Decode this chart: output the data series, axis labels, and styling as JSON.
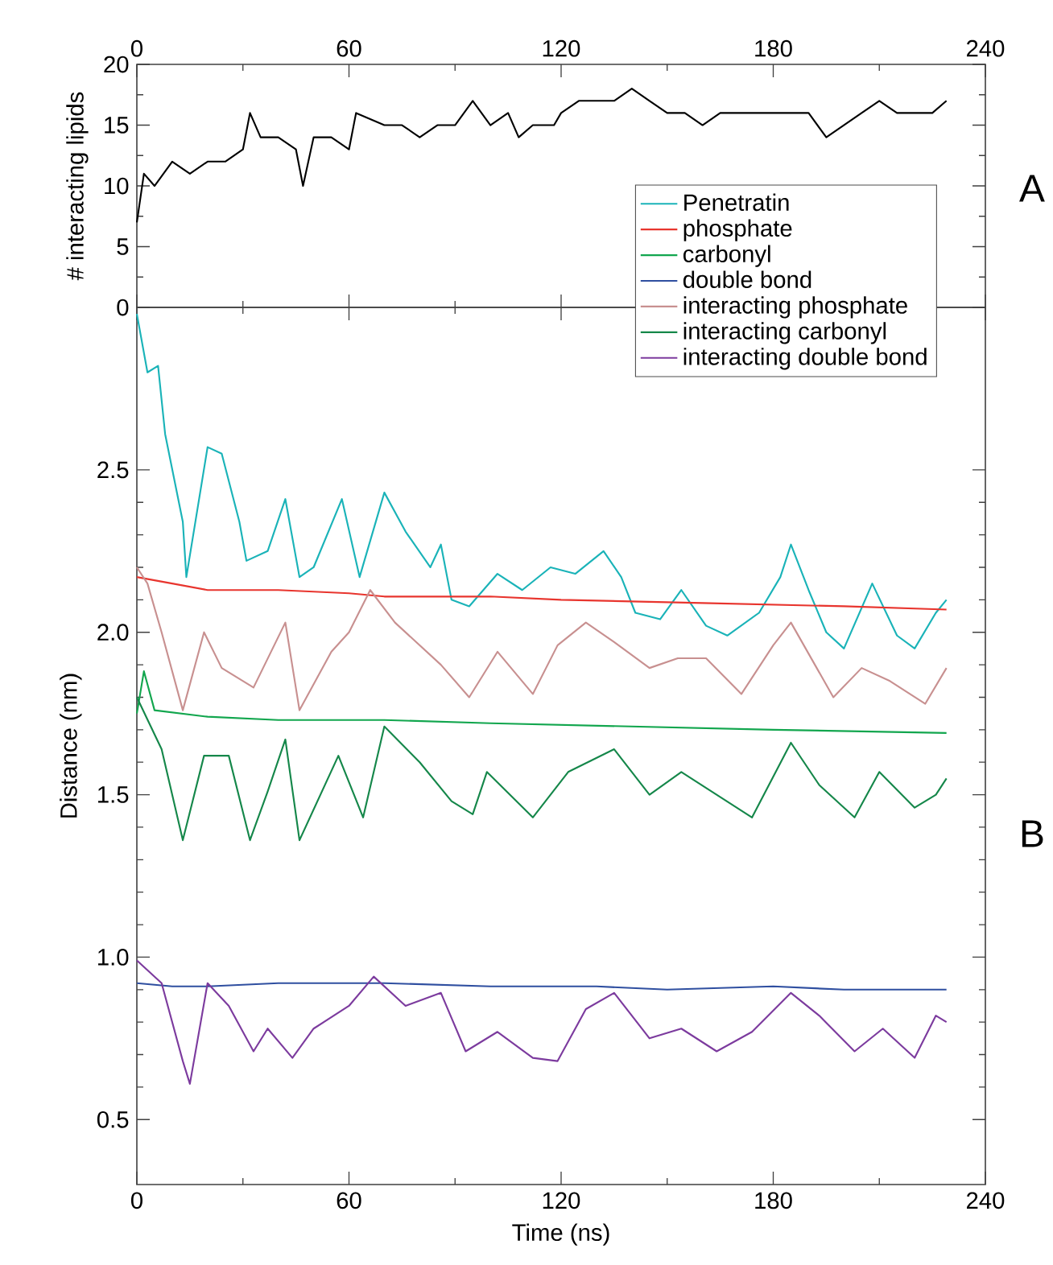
{
  "chart_data": [
    {
      "type": "line",
      "ylabel": "# interacting lipids",
      "xlim": [
        0,
        240
      ],
      "xticks": [
        0,
        60,
        120,
        180,
        240
      ],
      "ylim": [
        0,
        20
      ],
      "yticks": [
        0,
        5,
        10,
        15,
        20
      ],
      "marker": "none",
      "line_style": "solid",
      "annotations": [
        "A"
      ],
      "series": [
        {
          "color": "#000000",
          "x": [
            0,
            2,
            5,
            10,
            15,
            20,
            25,
            30,
            32,
            35,
            40,
            45,
            47,
            50,
            55,
            60,
            62,
            70,
            75,
            80,
            85,
            90,
            95,
            100,
            105,
            108,
            112,
            118,
            120,
            125,
            130,
            135,
            140,
            145,
            150,
            155,
            160,
            165,
            170,
            175,
            180,
            185,
            190,
            195,
            200,
            205,
            210,
            215,
            220,
            225,
            229
          ],
          "values": [
            7,
            11,
            10,
            12,
            11,
            12,
            12,
            13,
            16,
            14,
            14,
            13,
            10,
            14,
            14,
            13,
            16,
            15,
            15,
            14,
            15,
            15,
            17,
            15,
            16,
            14,
            15,
            15,
            16,
            17,
            17,
            17,
            18,
            17,
            16,
            16,
            15,
            16,
            16,
            16,
            16,
            16,
            16,
            14,
            15,
            16,
            17,
            16,
            16,
            16,
            17
          ]
        }
      ]
    },
    {
      "type": "line",
      "xlabel": "Time (ns)",
      "ylabel": "Distance (nm)",
      "xlim": [
        0,
        240
      ],
      "xticks": [
        0,
        60,
        120,
        180,
        240
      ],
      "ylim": [
        0.3,
        3.0
      ],
      "yticks": [
        0.5,
        {
          "value": 1.0,
          "label": "1.0"
        },
        1.5,
        {
          "value": 2.0,
          "label": "2.0"
        },
        2.5
      ],
      "legend": "top right",
      "marker": "none",
      "line_style": "solid",
      "annotations": [
        "B"
      ],
      "series": [
        {
          "name": "Penetratin",
          "color": "#1ab3b8",
          "x": [
            0,
            3,
            6,
            8,
            13,
            14,
            20,
            24,
            29,
            31,
            37,
            42,
            46,
            50,
            58,
            63,
            70,
            76,
            83,
            86,
            89,
            94,
            102,
            109,
            117,
            124,
            132,
            137,
            141,
            148,
            154,
            161,
            167,
            176,
            182,
            185,
            190,
            195,
            200,
            208,
            215,
            220,
            226,
            229
          ],
          "values": [
            2.98,
            2.8,
            2.82,
            2.61,
            2.34,
            2.17,
            2.57,
            2.55,
            2.34,
            2.22,
            2.25,
            2.41,
            2.17,
            2.2,
            2.41,
            2.17,
            2.43,
            2.31,
            2.2,
            2.27,
            2.1,
            2.08,
            2.18,
            2.13,
            2.2,
            2.18,
            2.25,
            2.17,
            2.06,
            2.04,
            2.13,
            2.02,
            1.99,
            2.06,
            2.17,
            2.27,
            2.13,
            2.0,
            1.95,
            2.15,
            1.99,
            1.95,
            2.06,
            2.1
          ]
        },
        {
          "name": "phosphate",
          "color": "#e8352e",
          "x": [
            0,
            10,
            20,
            40,
            60,
            70,
            100,
            120,
            160,
            200,
            229
          ],
          "values": [
            2.17,
            2.15,
            2.13,
            2.13,
            2.12,
            2.11,
            2.11,
            2.1,
            2.09,
            2.08,
            2.07
          ]
        },
        {
          "name": "carbonyl",
          "color": "#12a64e",
          "x": [
            0,
            2,
            5,
            20,
            40,
            70,
            100,
            140,
            180,
            229
          ],
          "values": [
            1.75,
            1.88,
            1.76,
            1.74,
            1.73,
            1.73,
            1.72,
            1.71,
            1.7,
            1.69
          ]
        },
        {
          "name": "double bond",
          "color": "#2f4fa0",
          "x": [
            0,
            10,
            20,
            40,
            70,
            100,
            130,
            150,
            180,
            200,
            229
          ],
          "values": [
            0.92,
            0.91,
            0.91,
            0.92,
            0.92,
            0.91,
            0.91,
            0.9,
            0.91,
            0.9,
            0.9
          ]
        },
        {
          "name": "interacting phosphate",
          "color": "#c89090",
          "x": [
            0,
            3,
            7,
            13,
            19,
            24,
            33,
            42,
            46,
            55,
            60,
            66,
            73,
            86,
            94,
            102,
            112,
            119,
            127,
            135,
            145,
            153,
            161,
            171,
            180,
            185,
            197,
            205,
            213,
            223,
            229
          ],
          "values": [
            2.2,
            2.15,
            2.0,
            1.76,
            2.0,
            1.89,
            1.83,
            2.03,
            1.76,
            1.94,
            2.0,
            2.13,
            2.03,
            1.9,
            1.8,
            1.94,
            1.81,
            1.96,
            2.03,
            1.97,
            1.89,
            1.92,
            1.92,
            1.81,
            1.96,
            2.03,
            1.8,
            1.89,
            1.85,
            1.78,
            1.89
          ]
        },
        {
          "name": "interacting carbonyl",
          "color": "#15874a",
          "x": [
            0,
            7,
            13,
            19,
            26,
            32,
            37,
            42,
            46,
            57,
            64,
            70,
            80,
            89,
            95,
            99,
            112,
            122,
            135,
            145,
            154,
            164,
            174,
            185,
            193,
            203,
            210,
            220,
            226,
            229
          ],
          "values": [
            1.8,
            1.64,
            1.36,
            1.62,
            1.62,
            1.36,
            1.51,
            1.67,
            1.36,
            1.62,
            1.43,
            1.71,
            1.6,
            1.48,
            1.44,
            1.57,
            1.43,
            1.57,
            1.64,
            1.5,
            1.57,
            1.5,
            1.43,
            1.66,
            1.53,
            1.43,
            1.57,
            1.46,
            1.5,
            1.55
          ]
        },
        {
          "name": "interacting double bond",
          "color": "#7c3b9e",
          "x": [
            0,
            7,
            13,
            15,
            20,
            26,
            33,
            37,
            44,
            50,
            60,
            67,
            76,
            86,
            93,
            102,
            112,
            119,
            127,
            135,
            145,
            154,
            164,
            174,
            185,
            193,
            203,
            211,
            220,
            226,
            229
          ],
          "values": [
            0.99,
            0.92,
            0.68,
            0.61,
            0.92,
            0.85,
            0.71,
            0.78,
            0.69,
            0.78,
            0.85,
            0.94,
            0.85,
            0.89,
            0.71,
            0.77,
            0.69,
            0.68,
            0.84,
            0.89,
            0.75,
            0.78,
            0.71,
            0.77,
            0.89,
            0.82,
            0.71,
            0.78,
            0.69,
            0.82,
            0.8
          ]
        }
      ]
    }
  ]
}
